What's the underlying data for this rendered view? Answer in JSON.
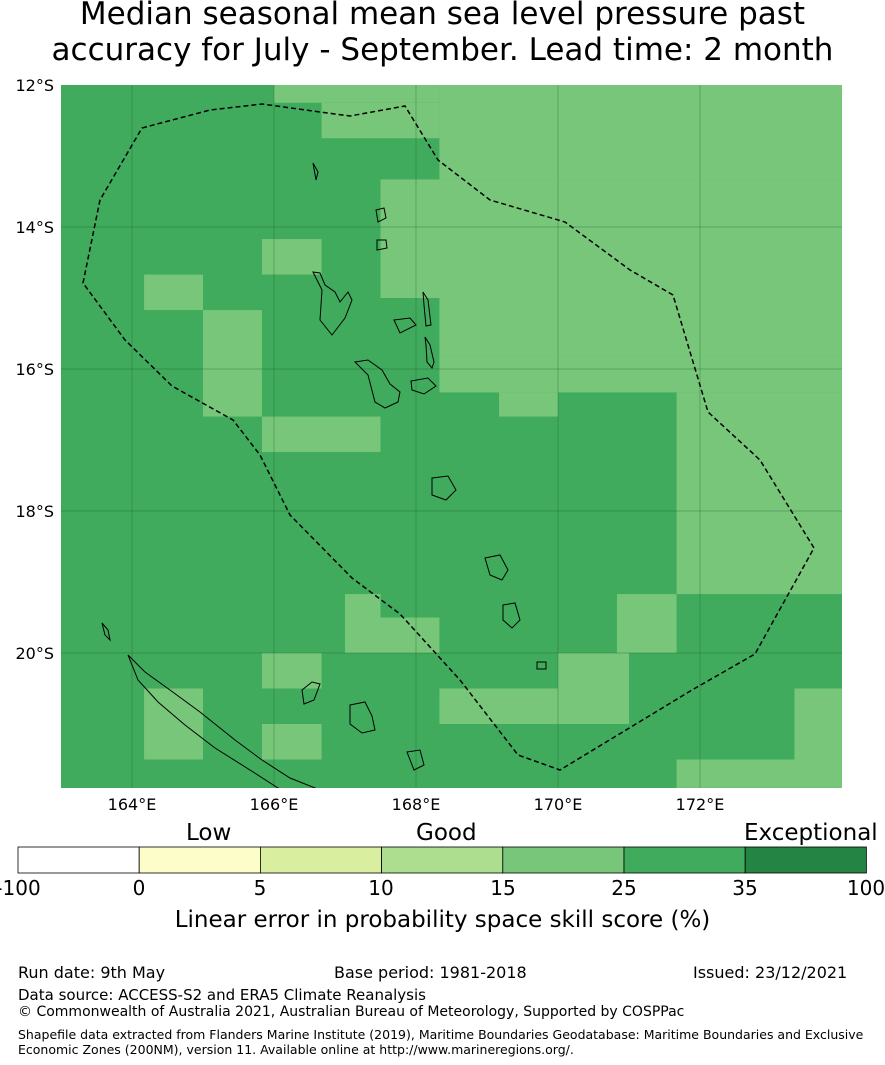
{
  "title": {
    "line1": "Median seasonal mean sea level pressure past",
    "line2": "accuracy for July - September. Lead time: 2 month"
  },
  "map": {
    "lat_labels": [
      "12°S",
      "14°S",
      "16°S",
      "18°S",
      "20°S"
    ],
    "lon_labels": [
      "164°E",
      "166°E",
      "168°E",
      "170°E",
      "172°E"
    ],
    "lon_range": [
      163.0,
      174.0
    ],
    "lat_range": [
      -21.9,
      -12.0
    ],
    "gridlines": true,
    "grid_cell_deg": 0.833,
    "background_class": "25-35",
    "light_class": "15-25",
    "light_cells": [
      [
        166.0,
        12.0,
        168.33,
        12.25
      ],
      [
        166.67,
        12.25,
        168.33,
        12.75
      ],
      [
        168.33,
        12.0,
        174.0,
        13.33
      ],
      [
        167.5,
        13.33,
        174.0,
        15.0
      ],
      [
        168.33,
        15.0,
        174.0,
        15.83
      ],
      [
        168.33,
        15.83,
        174.0,
        16.33
      ],
      [
        169.17,
        16.33,
        170.0,
        16.67
      ],
      [
        171.67,
        16.33,
        174.0,
        19.17
      ],
      [
        165.83,
        14.17,
        166.67,
        14.67
      ],
      [
        164.17,
        14.67,
        165.0,
        15.17
      ],
      [
        165.0,
        15.17,
        165.83,
        16.67
      ],
      [
        165.83,
        16.67,
        167.5,
        17.17
      ],
      [
        167.0,
        19.17,
        167.5,
        19.5
      ],
      [
        167.0,
        19.5,
        168.33,
        20.0
      ],
      [
        165.83,
        20.0,
        166.67,
        20.5
      ],
      [
        168.33,
        20.5,
        171.0,
        21.0
      ],
      [
        170.0,
        20.0,
        171.0,
        20.5
      ],
      [
        170.83,
        19.17,
        171.67,
        20.0
      ],
      [
        164.17,
        20.5,
        165.0,
        21.5
      ],
      [
        165.83,
        21.0,
        166.67,
        21.5
      ],
      [
        173.33,
        20.5,
        174.0,
        21.5
      ],
      [
        171.67,
        21.5,
        174.0,
        21.9
      ]
    ]
  },
  "colorbar": {
    "categories": [
      {
        "name": "Low"
      },
      {
        "name": "Good"
      },
      {
        "name": "Exceptional"
      }
    ],
    "ticks": [
      "-100",
      "0",
      "5",
      "10",
      "15",
      "25",
      "35",
      "100"
    ],
    "colors": [
      "#ffffff",
      "#fdfdc9",
      "#d9ee9f",
      "#addd8e",
      "#78c679",
      "#41ab5d",
      "#238443"
    ],
    "label": "Linear error in probability space skill score (%)"
  },
  "footer": {
    "run_date": "Run date: 9th May",
    "base_period": "Base period: 1981-2018",
    "issued": "Issued: 23/12/2021",
    "data_source": "Data source: ACCESS-S2 and ERA5 Climate Reanalysis",
    "copyright": "© Commonwealth of Australia 2021, Australian Bureau of Meteorology, Supported by COSPPac",
    "shapefile_line1": "Shapefile data extracted from Flanders Marine Institute (2019), Maritime Boundaries Geodatabase: Maritime Boundaries and Exclusive",
    "shapefile_line2": "Economic Zones (200NM), version 11. Available online at http://www.marineregions.org/."
  }
}
